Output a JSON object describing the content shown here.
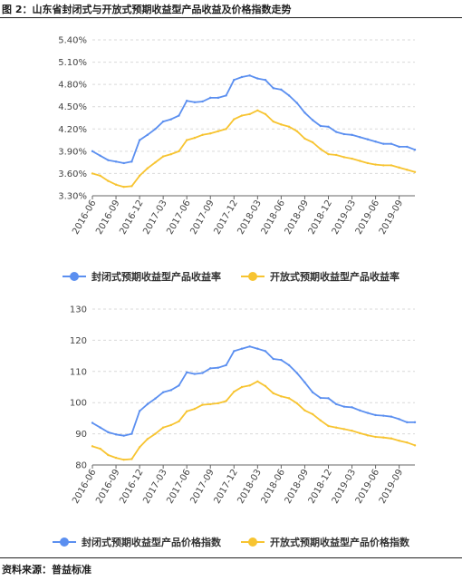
{
  "figure_title": "图 2：山东省封闭式与开放式预期收益型产品收益及价格指数走势",
  "source": "资料来源：普益标准",
  "colors": {
    "closed": "#5b8ff0",
    "open": "#f7c431",
    "grid": "#d9d9d9",
    "axis": "#666666"
  },
  "chart_data": [
    {
      "type": "line",
      "categories": [
        "2016-06",
        "2016-07",
        "2016-08",
        "2016-09",
        "2016-10",
        "2016-11",
        "2016-12",
        "2017-01",
        "2017-02",
        "2017-03",
        "2017-04",
        "2017-05",
        "2017-06",
        "2017-07",
        "2017-08",
        "2017-09",
        "2017-10",
        "2017-11",
        "2017-12",
        "2018-01",
        "2018-02",
        "2018-03",
        "2018-04",
        "2018-05",
        "2018-06",
        "2018-07",
        "2018-08",
        "2018-09",
        "2018-10",
        "2018-11",
        "2018-12",
        "2019-01",
        "2019-02",
        "2019-03",
        "2019-04",
        "2019-05",
        "2019-06",
        "2019-07",
        "2019-08",
        "2019-09",
        "2019-10",
        "2019-11"
      ],
      "tick_labels": [
        "2016-06",
        "2016-09",
        "2016-12",
        "2017-03",
        "2017-06",
        "2017-09",
        "2017-12",
        "2018-03",
        "2018-06",
        "2018-09",
        "2018-12",
        "2019-03",
        "2019-06",
        "2019-09"
      ],
      "y_ticks": [
        "3.30%",
        "3.60%",
        "3.90%",
        "4.20%",
        "4.50%",
        "4.80%",
        "5.10%",
        "5.40%"
      ],
      "ylim": [
        3.3,
        5.4
      ],
      "unit": "%",
      "grid": true,
      "legend_position": "bottom",
      "series": [
        {
          "name": "封闭式预期收益型产品收益率",
          "color": "#5b8ff0",
          "values": [
            3.9,
            3.84,
            3.78,
            3.76,
            3.74,
            3.76,
            4.05,
            4.12,
            4.2,
            4.3,
            4.33,
            4.38,
            4.58,
            4.56,
            4.57,
            4.62,
            4.62,
            4.65,
            4.86,
            4.9,
            4.92,
            4.88,
            4.86,
            4.75,
            4.73,
            4.65,
            4.55,
            4.42,
            4.32,
            4.24,
            4.23,
            4.16,
            4.13,
            4.12,
            4.09,
            4.06,
            4.03,
            4.0,
            4.0,
            3.96,
            3.96,
            3.92
          ]
        },
        {
          "name": "开放式预期收益型产品收益率",
          "color": "#f7c431",
          "values": [
            3.6,
            3.57,
            3.5,
            3.45,
            3.42,
            3.43,
            3.57,
            3.67,
            3.75,
            3.83,
            3.86,
            3.9,
            4.05,
            4.08,
            4.12,
            4.14,
            4.17,
            4.2,
            4.33,
            4.38,
            4.4,
            4.45,
            4.4,
            4.3,
            4.26,
            4.23,
            4.17,
            4.07,
            4.02,
            3.93,
            3.86,
            3.85,
            3.82,
            3.8,
            3.77,
            3.74,
            3.72,
            3.71,
            3.71,
            3.68,
            3.65,
            3.62
          ]
        }
      ]
    },
    {
      "type": "line",
      "categories": [
        "2016-06",
        "2016-07",
        "2016-08",
        "2016-09",
        "2016-10",
        "2016-11",
        "2016-12",
        "2017-01",
        "2017-02",
        "2017-03",
        "2017-04",
        "2017-05",
        "2017-06",
        "2017-07",
        "2017-08",
        "2017-09",
        "2017-10",
        "2017-11",
        "2017-12",
        "2018-01",
        "2018-02",
        "2018-03",
        "2018-04",
        "2018-05",
        "2018-06",
        "2018-07",
        "2018-08",
        "2018-09",
        "2018-10",
        "2018-11",
        "2018-12",
        "2019-01",
        "2019-02",
        "2019-03",
        "2019-04",
        "2019-05",
        "2019-06",
        "2019-07",
        "2019-08",
        "2019-09",
        "2019-10",
        "2019-11"
      ],
      "tick_labels": [
        "2016-06",
        "2016-09",
        "2016-12",
        "2017-03",
        "2017-06",
        "2017-09",
        "2017-12",
        "2018-03",
        "2018-06",
        "2018-09",
        "2018-12",
        "2019-03",
        "2019-06",
        "2019-09"
      ],
      "y_ticks": [
        "80",
        "90",
        "100",
        "110",
        "120",
        "130"
      ],
      "ylim": [
        80,
        130
      ],
      "grid": true,
      "legend_position": "bottom",
      "series": [
        {
          "name": "封闭式预期收益型产品价格指数",
          "color": "#5b8ff0",
          "values": [
            93.5,
            92.0,
            90.5,
            89.8,
            89.4,
            90.0,
            97.3,
            99.5,
            101.3,
            103.3,
            104.0,
            105.5,
            109.7,
            109.2,
            109.5,
            111.0,
            111.2,
            112.0,
            116.5,
            117.3,
            118.0,
            117.3,
            116.5,
            114.0,
            113.7,
            112.0,
            109.5,
            106.5,
            103.3,
            101.5,
            101.4,
            99.5,
            98.7,
            98.5,
            97.5,
            96.7,
            96.0,
            95.8,
            95.5,
            94.7,
            93.7,
            93.7
          ]
        },
        {
          "name": "开放式预期收益型产品价格指数",
          "color": "#f7c431",
          "values": [
            86.0,
            85.2,
            83.2,
            82.3,
            81.7,
            81.9,
            85.7,
            88.3,
            90.0,
            92.0,
            92.8,
            94.0,
            97.2,
            98.0,
            99.3,
            99.5,
            99.8,
            100.5,
            103.5,
            105.0,
            105.5,
            106.8,
            105.3,
            103.0,
            102.0,
            101.4,
            99.8,
            97.5,
            96.3,
            94.3,
            92.5,
            92.0,
            91.5,
            91.0,
            90.2,
            89.5,
            89.0,
            88.8,
            88.5,
            87.8,
            87.2,
            86.3
          ]
        }
      ]
    }
  ]
}
